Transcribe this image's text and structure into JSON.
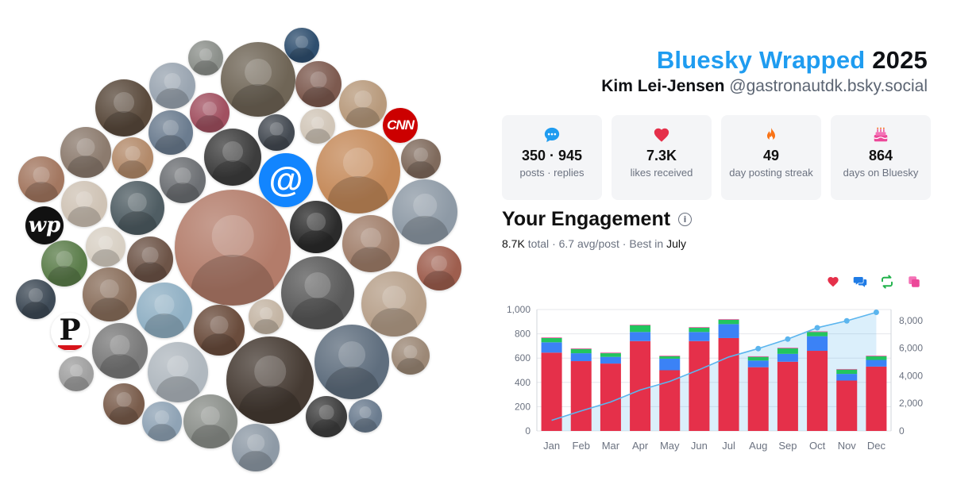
{
  "header": {
    "brand": "Bluesky Wrapped",
    "year": "2025",
    "display_name": "Kim Lei-Jensen",
    "handle": "@gastronautdk.bsky.social"
  },
  "stats": [
    {
      "icon": "speech-bubble-icon",
      "value": "350 · 945",
      "label": "posts · replies",
      "color": "#1f9cf0"
    },
    {
      "icon": "heart-icon",
      "value": "7.3K",
      "label": "likes received",
      "color": "#e5304a"
    },
    {
      "icon": "flame-icon",
      "value": "49",
      "label": "day posting streak",
      "color": "#f97316"
    },
    {
      "icon": "cake-icon",
      "value": "864",
      "label": "days on Bluesky",
      "color": "#ec4899"
    }
  ],
  "engagement": {
    "title": "Your Engagement",
    "total_value": "8.7K",
    "total_label": "total",
    "separator": "·",
    "avg_text": "6.7 avg/post",
    "best_prefix": "Best in",
    "best_month": "July"
  },
  "legend": [
    {
      "icon": "heart-icon",
      "color": "#e5304a"
    },
    {
      "icon": "chat-bubbles-icon",
      "color": "#1f7be5"
    },
    {
      "icon": "repost-icon",
      "color": "#22b24c"
    },
    {
      "icon": "quote-icon",
      "color": "#ec4899"
    }
  ],
  "chart_data": {
    "type": "bar",
    "stacked": true,
    "categories": [
      "Jan",
      "Feb",
      "Mar",
      "Apr",
      "May",
      "Jun",
      "Jul",
      "Aug",
      "Sep",
      "Oct",
      "Nov",
      "Dec"
    ],
    "series": [
      {
        "values": [
          645,
          575,
          555,
          740,
          500,
          740,
          765,
          525,
          570,
          660,
          415,
          530
        ],
        "color": "#e5304a"
      },
      {
        "values": [
          85,
          65,
          55,
          75,
          95,
          75,
          115,
          55,
          65,
          120,
          55,
          55
        ],
        "color": "#3b82f6"
      },
      {
        "values": [
          35,
          35,
          30,
          55,
          20,
          35,
          35,
          30,
          45,
          35,
          35,
          30
        ],
        "color": "#22c55e"
      },
      {
        "values": [
          5,
          5,
          5,
          5,
          5,
          5,
          5,
          5,
          5,
          5,
          5,
          5
        ],
        "color": "#ec4899"
      }
    ],
    "cumulative": {
      "values": [
        770,
        1450,
        2100,
        2970,
        3590,
        4440,
        5360,
        5970,
        6660,
        7480,
        7980,
        8600
      ],
      "color": "#5bb5ee",
      "marked_from_index": 7
    },
    "y_left": {
      "ticks": [
        0,
        200,
        400,
        600,
        800,
        1000
      ],
      "tick_labels": [
        "0",
        "200",
        "400",
        "600",
        "800",
        "1,000"
      ],
      "range": [
        0,
        1000
      ]
    },
    "y_right": {
      "ticks": [
        0,
        2000,
        4000,
        6000,
        8000
      ],
      "tick_labels": [
        "0",
        "2,000",
        "4,000",
        "6,000",
        "8,000"
      ],
      "range": [
        0,
        8800
      ]
    },
    "grid": true
  },
  "avatars": [
    {
      "color": "#8b8f8a"
    },
    {
      "color": "#6f6556"
    },
    {
      "color": "#2f4f6f"
    },
    {
      "color": "#5a4a3c"
    },
    {
      "color": "#9aa5b1"
    },
    {
      "color": "#7d5a4f"
    },
    {
      "color": "#b89a7c"
    },
    {
      "color": "#a15060"
    },
    {
      "color": "#6b7c8f"
    },
    {
      "color": "#444a52"
    },
    {
      "color": "#d1c6b8"
    },
    {
      "color": "#8c7b6e"
    },
    {
      "color": "#b38a6a"
    },
    {
      "color": "#3d3d3d"
    },
    {
      "color": "#c58a5a"
    },
    {
      "color": "#7f6a5c"
    },
    {
      "color": "#a37760"
    },
    {
      "color": "#6c6f73"
    },
    {
      "color": "#cfc3b5"
    },
    {
      "color": "#4f5d63"
    },
    {
      "color": "#b37c6a"
    },
    {
      "color": "#2b2b2b"
    },
    {
      "color": "#8e9aa6"
    },
    {
      "color": "#a17f6b"
    },
    {
      "color": "#d8d0c4"
    },
    {
      "color": "#6d5447"
    },
    {
      "color": "#5b7d4a"
    },
    {
      "color": "#9e5e4e"
    },
    {
      "color": "#595959"
    },
    {
      "color": "#8a6f5c"
    },
    {
      "color": "#b7a08a"
    },
    {
      "color": "#3e4a56"
    },
    {
      "color": "#90b0c4"
    },
    {
      "color": "#c4b5a4"
    },
    {
      "color": "#7a7a7a"
    },
    {
      "color": "#6a4c3c"
    },
    {
      "color": "#5f6e7e"
    },
    {
      "color": "#9c8876"
    },
    {
      "color": "#b0b8bf"
    },
    {
      "color": "#463b33"
    },
    {
      "color": "#a0a0a0"
    },
    {
      "color": "#795c4b"
    },
    {
      "color": "#8fa3b5"
    }
  ]
}
